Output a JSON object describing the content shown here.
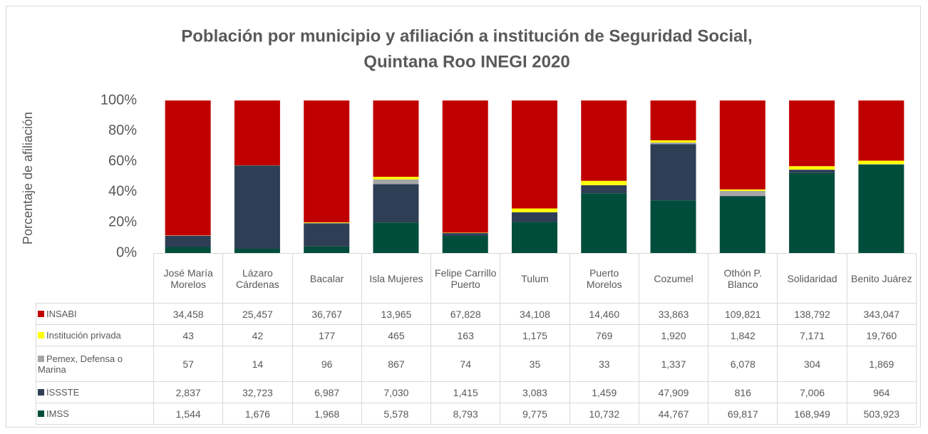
{
  "chart_data": {
    "type": "stacked_bar_100",
    "title": "Población por municipio y afiliación a institución de Seguridad Social,",
    "subtitle": "Quintana Roo INEGI 2020",
    "y_label": "Porcentaje de afiliación",
    "categories": [
      "José María Morelos",
      "Lázaro Cárdenas",
      "Bacalar",
      "Isla Mujeres",
      "Felipe Carrillo Puerto",
      "Tulum",
      "Puerto Morelos",
      "Cozumel",
      "Othón P. Blanco",
      "Solidaridad",
      "Benito Juárez"
    ],
    "ylim": [
      0,
      100
    ],
    "yticks": [
      {
        "value": 0,
        "label": "0%"
      },
      {
        "value": 20,
        "label": "20%"
      },
      {
        "value": 40,
        "label": "40%"
      },
      {
        "value": 60,
        "label": "60%"
      },
      {
        "value": 80,
        "label": "80%"
      },
      {
        "value": 100,
        "label": "100%"
      }
    ],
    "grid": false,
    "series": [
      {
        "name": "INSABI",
        "color": "#c00000",
        "values": [
          34458,
          25457,
          36767,
          13965,
          67828,
          34108,
          14460,
          33863,
          109821,
          138792,
          343047
        ],
        "value_labels": [
          "34,458",
          "25,457",
          "36,767",
          "13,965",
          "67,828",
          "34,108",
          "14,460",
          "33,863",
          "109,821",
          "138,792",
          "343,047"
        ]
      },
      {
        "name": "Institución privada",
        "color": "#ffff00",
        "values": [
          43,
          42,
          177,
          465,
          163,
          1175,
          769,
          1920,
          1842,
          7171,
          19760
        ],
        "value_labels": [
          "43",
          "42",
          "177",
          "465",
          "163",
          "1,175",
          "769",
          "1,920",
          "1,842",
          "7,171",
          "19,760"
        ]
      },
      {
        "name": "Pemex, Defensa o Marina",
        "color": "#a6a6a6",
        "values": [
          57,
          14,
          96,
          867,
          74,
          35,
          33,
          1337,
          6078,
          304,
          1869
        ],
        "value_labels": [
          "57",
          "14",
          "96",
          "867",
          "74",
          "35",
          "33",
          "1,337",
          "6,078",
          "304",
          "1,869"
        ]
      },
      {
        "name": "ISSSTE",
        "color": "#2e3e55",
        "values": [
          2837,
          32723,
          6987,
          7030,
          1415,
          3083,
          1459,
          47909,
          816,
          7006,
          964
        ],
        "value_labels": [
          "2,837",
          "32,723",
          "6,987",
          "7,030",
          "1,415",
          "3,083",
          "1,459",
          "47,909",
          "816",
          "7,006",
          "964"
        ]
      },
      {
        "name": "IMSS",
        "color": "#004d3b",
        "values": [
          1544,
          1676,
          1968,
          5578,
          8793,
          9775,
          10732,
          44767,
          69817,
          168949,
          503923
        ],
        "value_labels": [
          "1,544",
          "1,676",
          "1,968",
          "5,578",
          "8,793",
          "9,775",
          "10,732",
          "44,767",
          "69,817",
          "168,949",
          "503,923"
        ]
      }
    ]
  }
}
